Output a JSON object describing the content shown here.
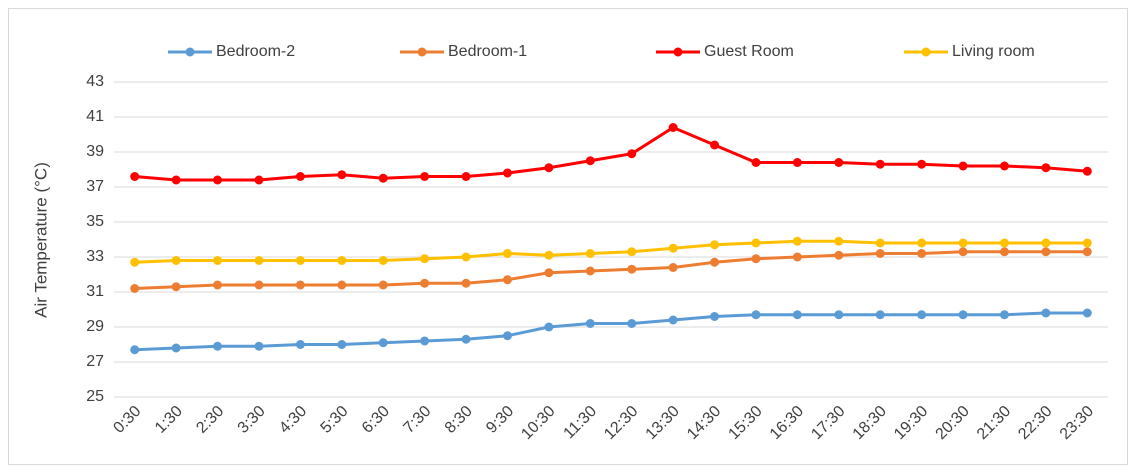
{
  "chart_data": {
    "type": "line",
    "y_label": "Air Temperature (°C)",
    "categories": [
      "0:30",
      "1:30",
      "2:30",
      "3:30",
      "4:30",
      "5:30",
      "6:30",
      "7:30",
      "8:30",
      "9:30",
      "10:30",
      "11:30",
      "12:30",
      "13:30",
      "14:30",
      "15:30",
      "16:30",
      "17:30",
      "18:30",
      "19:30",
      "20:30",
      "21:30",
      "22:30",
      "23:30"
    ],
    "series": [
      {
        "name": "Bedroom-2",
        "color": "#5b9bd5",
        "values": [
          27.7,
          27.8,
          27.9,
          27.9,
          28.0,
          28.0,
          28.1,
          28.2,
          28.3,
          28.5,
          29.0,
          29.2,
          29.2,
          29.4,
          29.6,
          29.7,
          29.7,
          29.7,
          29.7,
          29.7,
          29.7,
          29.7,
          29.8,
          29.8
        ]
      },
      {
        "name": "Bedroom-1",
        "color": "#ed7d31",
        "values": [
          31.2,
          31.3,
          31.4,
          31.4,
          31.4,
          31.4,
          31.4,
          31.5,
          31.5,
          31.7,
          32.1,
          32.2,
          32.3,
          32.4,
          32.7,
          32.9,
          33.0,
          33.1,
          33.2,
          33.2,
          33.3,
          33.3,
          33.3,
          33.3
        ]
      },
      {
        "name": "Guest Room",
        "color": "#ff0000",
        "values": [
          37.6,
          37.4,
          37.4,
          37.4,
          37.6,
          37.7,
          37.5,
          37.6,
          37.6,
          37.8,
          38.1,
          38.5,
          38.9,
          40.4,
          39.4,
          38.4,
          38.4,
          38.4,
          38.3,
          38.3,
          38.2,
          38.2,
          38.1,
          37.9
        ]
      },
      {
        "name": "Living room",
        "color": "#ffc000",
        "values": [
          32.7,
          32.8,
          32.8,
          32.8,
          32.8,
          32.8,
          32.8,
          32.9,
          33.0,
          33.2,
          33.1,
          33.2,
          33.3,
          33.5,
          33.7,
          33.8,
          33.9,
          33.9,
          33.8,
          33.8,
          33.8,
          33.8,
          33.8,
          33.8
        ]
      }
    ],
    "ylim": [
      25,
      43
    ],
    "yticks": [
      25,
      27,
      29,
      31,
      33,
      35,
      37,
      39,
      41,
      43
    ],
    "grid": true,
    "legend": "top"
  }
}
